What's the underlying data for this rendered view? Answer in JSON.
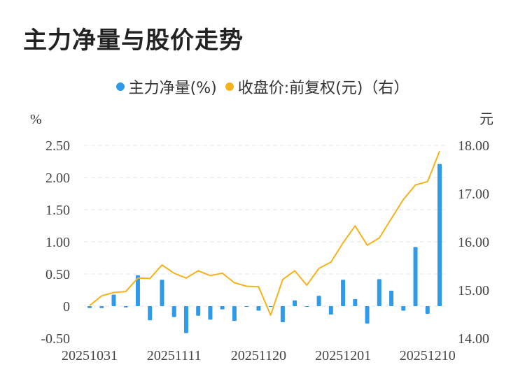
{
  "title": "主力净量与股价走势",
  "legend": {
    "series1": "主力净量(%)",
    "series2": "收盘价:前复权(元)（右）"
  },
  "colors": {
    "bar": "#2f9be8",
    "line": "#f5b21b",
    "grid": "#e6e6e6"
  },
  "chart_data": {
    "type": "bar",
    "y_left_unit": "%",
    "y_right_unit": "元",
    "y_left_ticks": [
      "2.50",
      "2.00",
      "1.50",
      "1.00",
      "0.50",
      "0",
      "-0.50"
    ],
    "y_left_tick_values": [
      2.5,
      2.0,
      1.5,
      1.0,
      0.5,
      0,
      -0.5
    ],
    "y_right_ticks": [
      "18.00",
      "17.00",
      "16.00",
      "15.00",
      "14.00"
    ],
    "y_right_tick_values": [
      18,
      17,
      16,
      15,
      14
    ],
    "ylim_left": [
      -0.5,
      2.5
    ],
    "ylim_right": [
      14,
      18
    ],
    "x_tick_labels": [
      "20251031",
      "20251111",
      "20251120",
      "20251201",
      "20251210"
    ],
    "x_tick_indices": [
      0,
      7,
      14,
      21,
      28
    ],
    "series": [
      {
        "name": "主力净量(%)",
        "type": "bar",
        "values": [
          -0.03,
          -0.03,
          0.18,
          -0.02,
          0.48,
          -0.22,
          0.41,
          -0.17,
          -0.42,
          -0.15,
          -0.21,
          -0.05,
          -0.23,
          -0.01,
          -0.07,
          -0.01,
          -0.25,
          0.09,
          0.0,
          0.16,
          -0.13,
          0.41,
          0.11,
          -0.27,
          0.42,
          0.24,
          -0.07,
          0.92,
          -0.12,
          2.21
        ]
      },
      {
        "name": "收盘价:前复权(元)（右）",
        "type": "line",
        "values": [
          14.68,
          14.88,
          14.95,
          14.97,
          15.25,
          15.24,
          15.52,
          15.35,
          15.25,
          15.4,
          15.3,
          15.35,
          15.15,
          15.08,
          15.07,
          14.48,
          15.22,
          15.4,
          15.1,
          15.45,
          15.58,
          15.98,
          16.33,
          15.93,
          16.08,
          16.48,
          16.88,
          17.18,
          17.25,
          17.88
        ]
      }
    ]
  }
}
